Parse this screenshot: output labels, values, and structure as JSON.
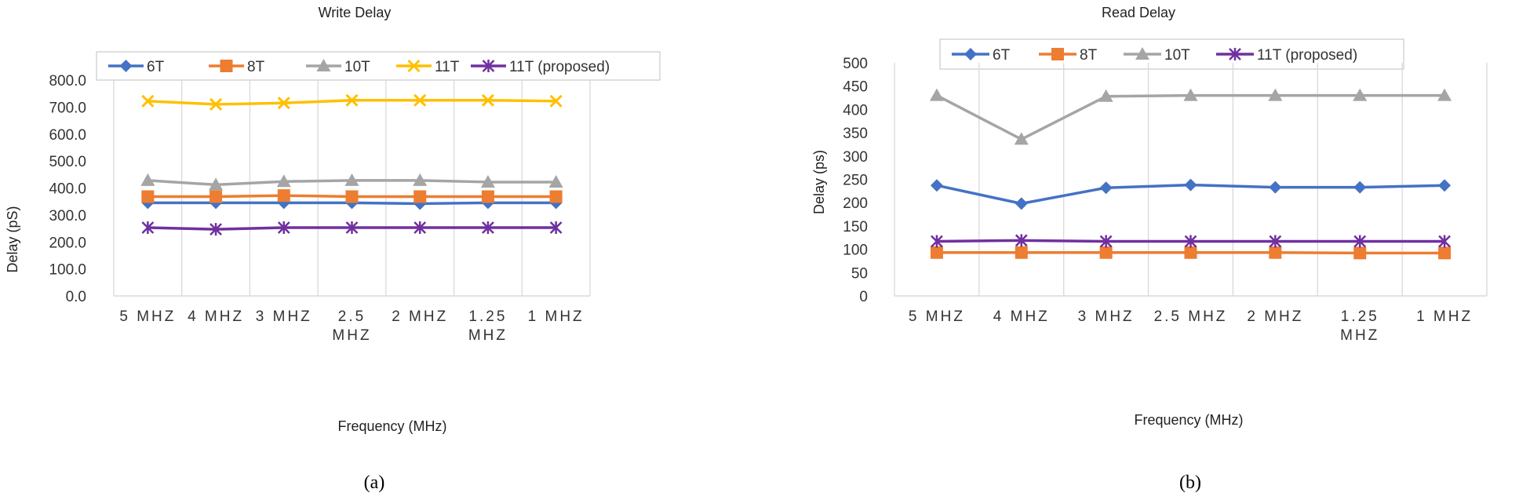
{
  "chart_data": [
    {
      "id": "a",
      "type": "line",
      "title": "Write Delay",
      "xlabel": "Frequency (MHz)",
      "ylabel": "Delay (pS)",
      "categories": [
        "5 MHZ",
        "4 MHZ",
        "3 MHZ",
        "2.5 MHZ",
        "2 MHZ",
        "1.25 MHZ",
        "1 MHZ"
      ],
      "ylim": [
        0,
        800
      ],
      "ytick_labels": [
        "0.0",
        "100.0",
        "200.0",
        "300.0",
        "400.0",
        "500.0",
        "600.0",
        "700.0",
        "800.0"
      ],
      "legend_position": "top",
      "grid": "vertical",
      "caption": "(a)",
      "series": [
        {
          "name": "6T",
          "color": "#4472C4",
          "marker": "diamond",
          "values": [
            345,
            345,
            345,
            345,
            342,
            345,
            345
          ]
        },
        {
          "name": "8T",
          "color": "#ED7D31",
          "marker": "square",
          "values": [
            368,
            368,
            372,
            368,
            368,
            368,
            368
          ]
        },
        {
          "name": "10T",
          "color": "#A5A5A5",
          "marker": "triangle",
          "values": [
            428,
            412,
            424,
            428,
            428,
            422,
            422
          ]
        },
        {
          "name": "11T",
          "color": "#FFC000",
          "marker": "x",
          "values": [
            722,
            710,
            715,
            725,
            725,
            725,
            722
          ]
        },
        {
          "name": "11T (proposed)",
          "color": "#7030A0",
          "marker": "star",
          "values": [
            253,
            247,
            253,
            253,
            253,
            253,
            253
          ]
        }
      ]
    },
    {
      "id": "b",
      "type": "line",
      "title": "Read Delay",
      "xlabel": "Frequency (MHz)",
      "ylabel": "Delay (ps)",
      "categories": [
        "5 MHZ",
        "4 MHZ",
        "3 MHZ",
        "2.5 MHZ",
        "2 MHZ",
        "1.25 MHZ",
        "1 MHZ"
      ],
      "ylim": [
        0,
        500
      ],
      "ytick_labels": [
        "0",
        "50",
        "100",
        "150",
        "200",
        "250",
        "300",
        "350",
        "400",
        "450",
        "500"
      ],
      "legend_position": "top",
      "grid": "vertical",
      "caption": "(b)",
      "series": [
        {
          "name": "6T",
          "color": "#4472C4",
          "marker": "diamond",
          "values": [
            237,
            198,
            232,
            238,
            233,
            233,
            237
          ]
        },
        {
          "name": "8T",
          "color": "#ED7D31",
          "marker": "square",
          "values": [
            93,
            93,
            93,
            93,
            93,
            92,
            92
          ]
        },
        {
          "name": "10T",
          "color": "#A5A5A5",
          "marker": "triangle",
          "values": [
            430,
            336,
            428,
            430,
            430,
            430,
            430
          ]
        },
        {
          "name": "11T (proposed)",
          "color": "#7030A0",
          "marker": "star",
          "values": [
            117,
            119,
            117,
            117,
            117,
            117,
            117
          ]
        }
      ]
    }
  ]
}
